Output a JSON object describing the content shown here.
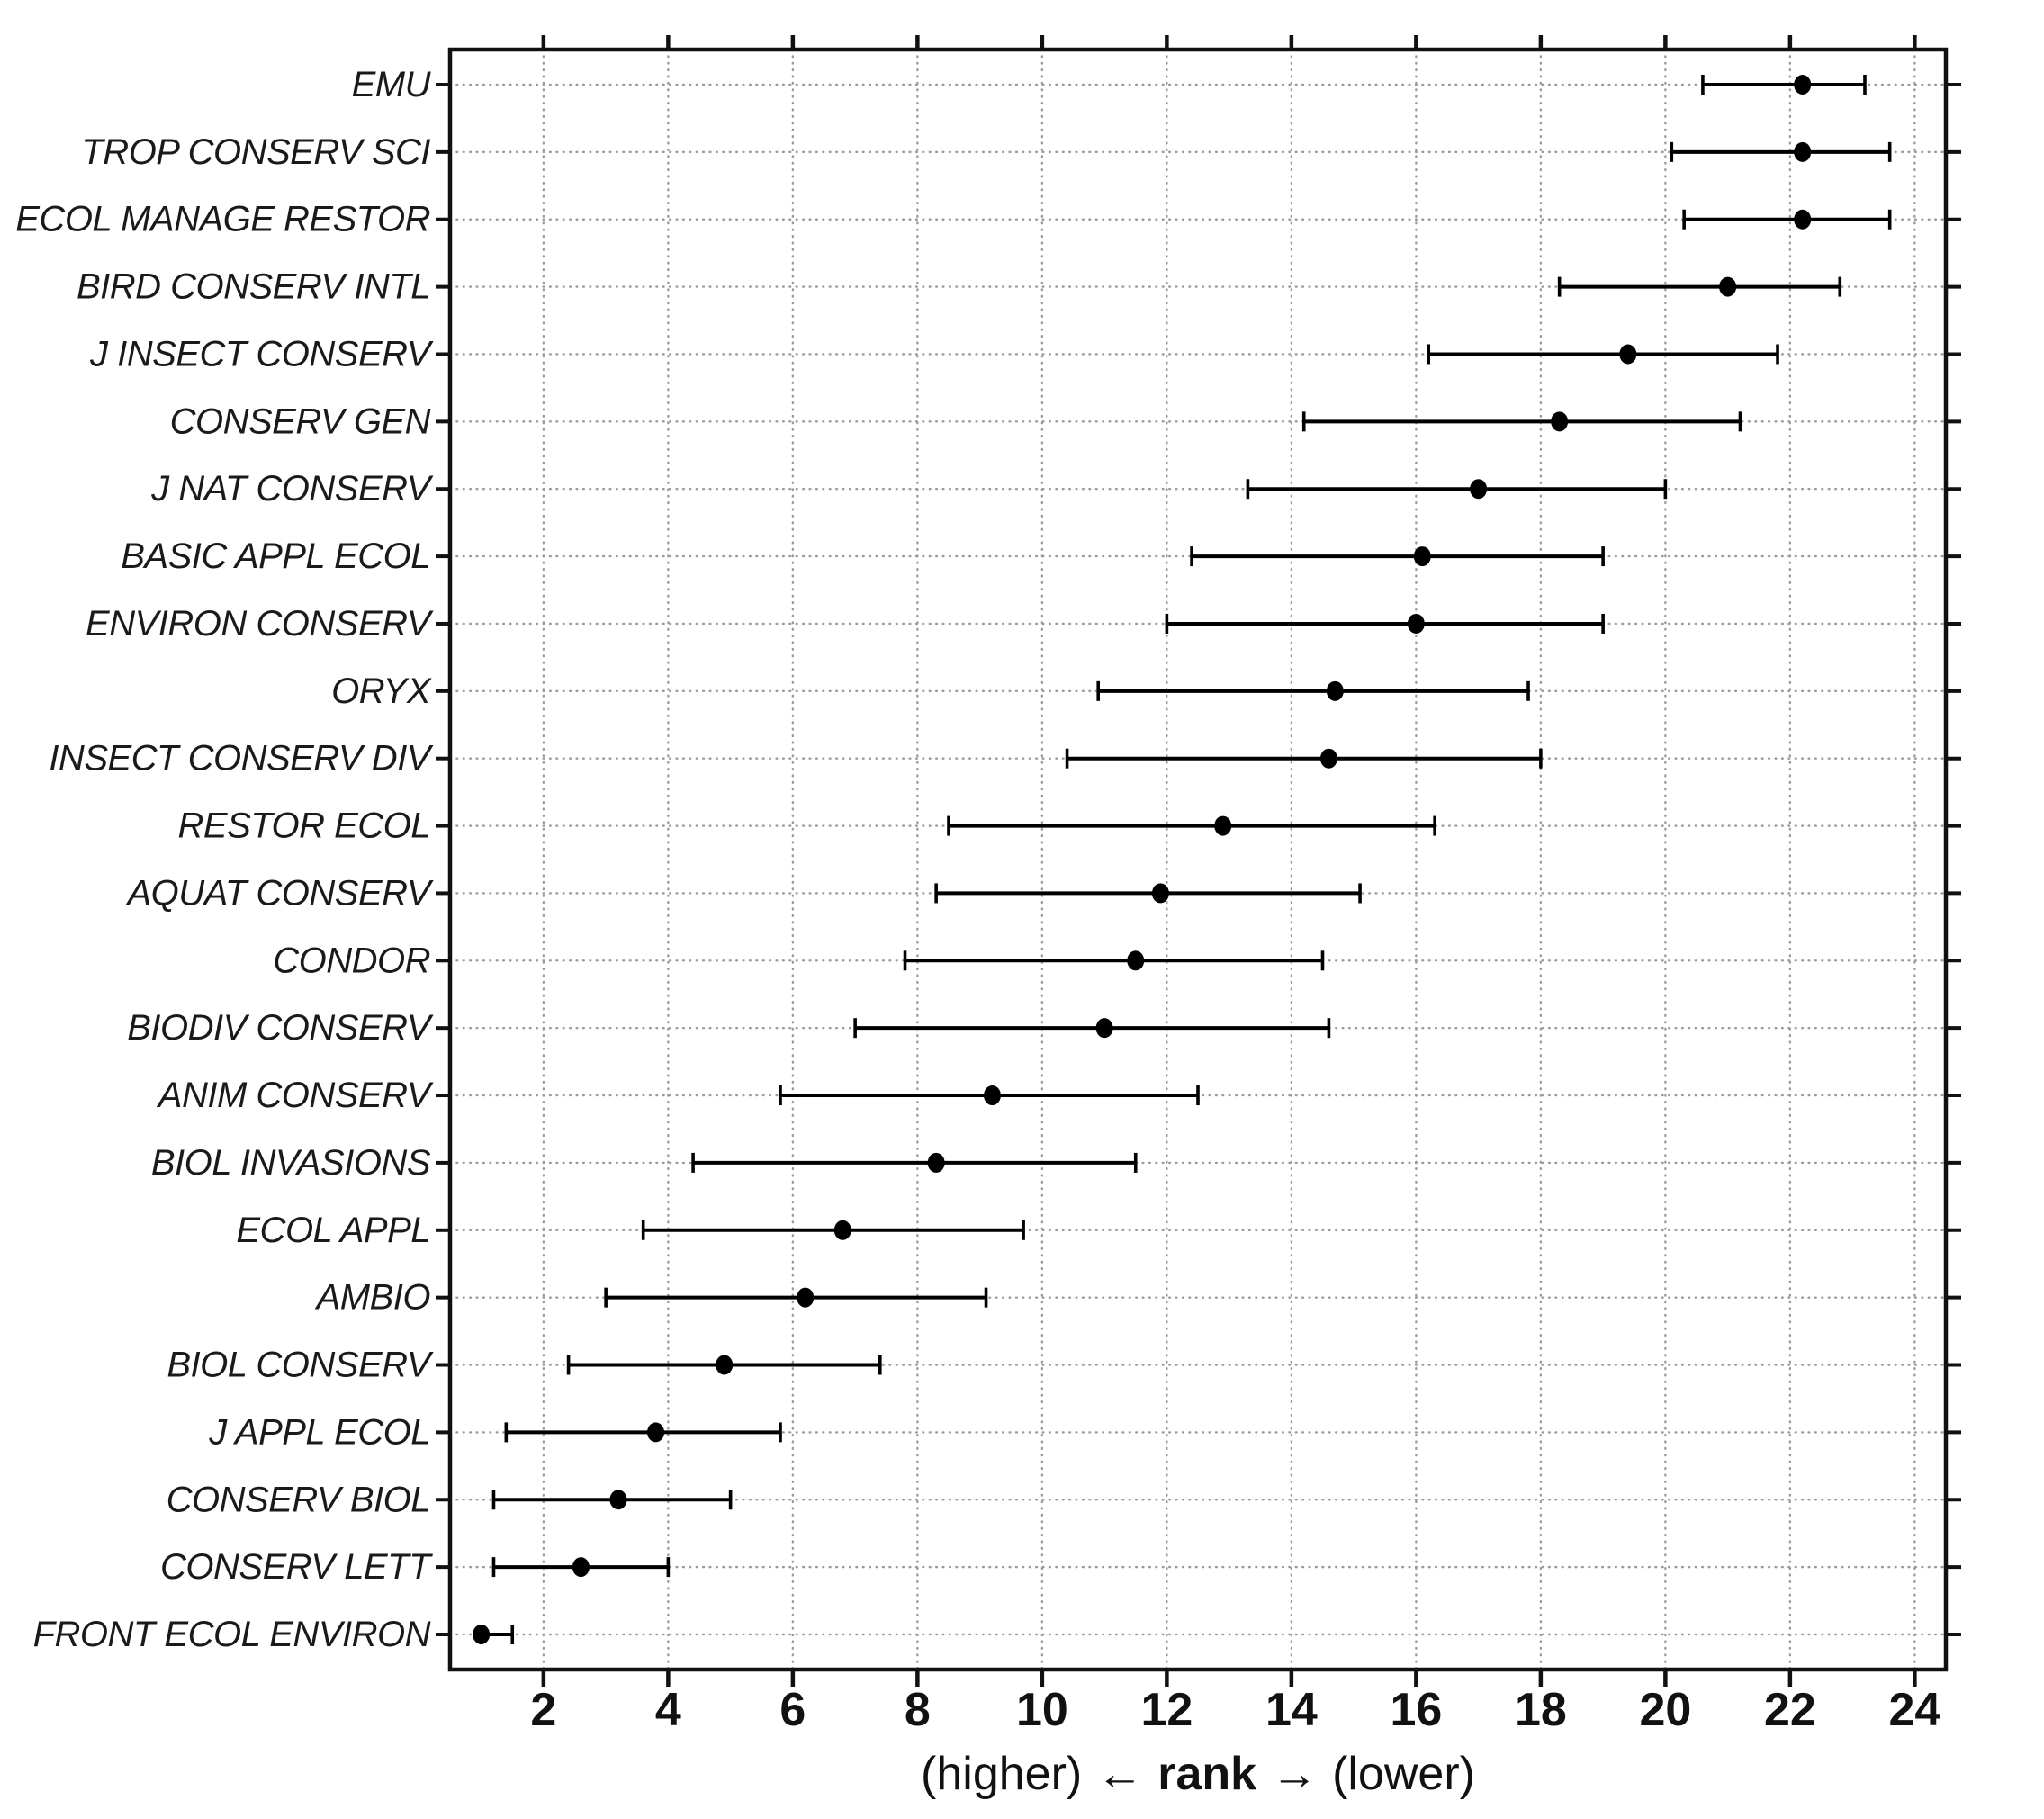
{
  "chart_data": {
    "type": "scatter",
    "subtype": "horizontal-dot-plot-with-error-bars",
    "title": "",
    "ylabel": "",
    "xlabel": "(higher) ← rank → (lower)",
    "xlabel_parts": {
      "left": "(higher)",
      "arrow_left": "←",
      "center": "rank",
      "arrow_right": "→",
      "right": "(lower)"
    },
    "xlim": [
      0.5,
      24.5
    ],
    "xticks": [
      2,
      4,
      6,
      8,
      10,
      12,
      14,
      16,
      18,
      20,
      22,
      24
    ],
    "grid": "dotted-both-axes",
    "legend": "none",
    "categories": [
      "EMU",
      "TROP CONSERV SCI",
      "ECOL MANAGE RESTOR",
      "BIRD CONSERV INTL",
      "J INSECT CONSERV",
      "CONSERV GEN",
      "J NAT CONSERV",
      "BASIC APPL ECOL",
      "ENVIRON CONSERV",
      "ORYX",
      "INSECT CONSERV DIV",
      "RESTOR ECOL",
      "AQUAT CONSERV",
      "CONDOR",
      "BIODIV CONSERV",
      "ANIM CONSERV",
      "BIOL INVASIONS",
      "ECOL APPL",
      "AMBIO",
      "BIOL CONSERV",
      "J APPL ECOL",
      "CONSERV BIOL",
      "CONSERV LETT",
      "FRONT ECOL ENVIRON"
    ],
    "points": [
      {
        "label": "EMU",
        "value": 22.2,
        "lo": 20.6,
        "hi": 23.2
      },
      {
        "label": "TROP CONSERV SCI",
        "value": 22.2,
        "lo": 20.1,
        "hi": 23.6
      },
      {
        "label": "ECOL MANAGE RESTOR",
        "value": 22.2,
        "lo": 20.3,
        "hi": 23.6
      },
      {
        "label": "BIRD CONSERV INTL",
        "value": 21.0,
        "lo": 18.3,
        "hi": 22.8
      },
      {
        "label": "J INSECT CONSERV",
        "value": 19.4,
        "lo": 16.2,
        "hi": 21.8
      },
      {
        "label": "CONSERV GEN",
        "value": 18.3,
        "lo": 14.2,
        "hi": 21.2
      },
      {
        "label": "J NAT CONSERV",
        "value": 17.0,
        "lo": 13.3,
        "hi": 20.0
      },
      {
        "label": "BASIC APPL ECOL",
        "value": 16.1,
        "lo": 12.4,
        "hi": 19.0
      },
      {
        "label": "ENVIRON CONSERV",
        "value": 16.0,
        "lo": 12.0,
        "hi": 19.0
      },
      {
        "label": "ORYX",
        "value": 14.7,
        "lo": 10.9,
        "hi": 17.8
      },
      {
        "label": "INSECT CONSERV DIV",
        "value": 14.6,
        "lo": 10.4,
        "hi": 18.0
      },
      {
        "label": "RESTOR ECOL",
        "value": 12.9,
        "lo": 8.5,
        "hi": 16.3
      },
      {
        "label": "AQUAT CONSERV",
        "value": 11.9,
        "lo": 8.3,
        "hi": 15.1
      },
      {
        "label": "CONDOR",
        "value": 11.5,
        "lo": 7.8,
        "hi": 14.5
      },
      {
        "label": "BIODIV CONSERV",
        "value": 11.0,
        "lo": 7.0,
        "hi": 14.6
      },
      {
        "label": "ANIM CONSERV",
        "value": 9.2,
        "lo": 5.8,
        "hi": 12.5
      },
      {
        "label": "BIOL INVASIONS",
        "value": 8.3,
        "lo": 4.4,
        "hi": 11.5
      },
      {
        "label": "ECOL APPL",
        "value": 6.8,
        "lo": 3.6,
        "hi": 9.7
      },
      {
        "label": "AMBIO",
        "value": 6.2,
        "lo": 3.0,
        "hi": 9.1
      },
      {
        "label": "BIOL CONSERV",
        "value": 4.9,
        "lo": 2.4,
        "hi": 7.4
      },
      {
        "label": "J APPL ECOL",
        "value": 3.8,
        "lo": 1.4,
        "hi": 5.8
      },
      {
        "label": "CONSERV BIOL",
        "value": 3.2,
        "lo": 1.2,
        "hi": 5.0
      },
      {
        "label": "CONSERV LETT",
        "value": 2.6,
        "lo": 1.2,
        "hi": 4.0
      },
      {
        "label": "FRONT ECOL ENVIRON",
        "value": 1.0,
        "lo": 1.0,
        "hi": 1.5
      }
    ]
  },
  "colors": {
    "point": "#000000",
    "error_bar": "#000000",
    "axis": "#111111",
    "grid": "#9a9a9a",
    "text": "#111111",
    "background": "#ffffff"
  }
}
